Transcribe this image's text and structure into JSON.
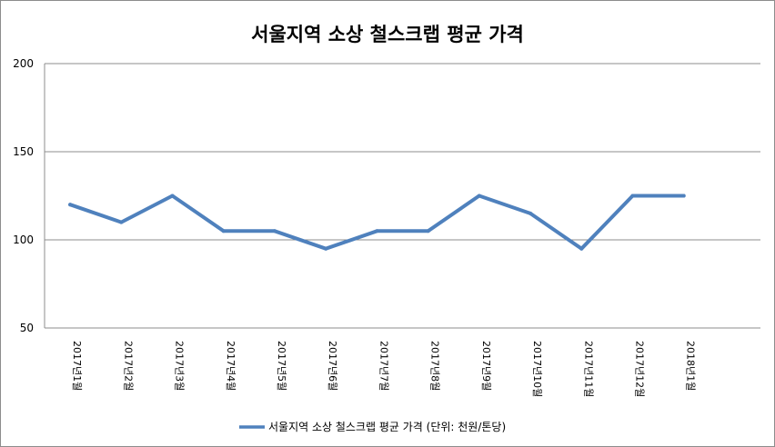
{
  "chart_data": {
    "type": "line",
    "title": "서울지역 소상 철스크랩 평균 가격",
    "categories": [
      "2017년1월",
      "2017년2월",
      "2017년3월",
      "2017년4월",
      "2017년5월",
      "2017년6월",
      "2017년7월",
      "2017년8월",
      "2017년9월",
      "2017년10월",
      "2017년11월",
      "2017년12월",
      "2018년1월"
    ],
    "series": [
      {
        "name": "서울지역 소상 철스크랩 평균 가격 (단위: 천원/톤당)",
        "values": [
          120,
          110,
          125,
          105,
          105,
          95,
          105,
          105,
          125,
          115,
          95,
          125,
          125
        ],
        "color": "#4f81bd"
      }
    ],
    "ylim": [
      50,
      200
    ],
    "yticks": [
      "50",
      "100",
      "150",
      "200"
    ],
    "grid": true,
    "legend_position": "bottom"
  }
}
